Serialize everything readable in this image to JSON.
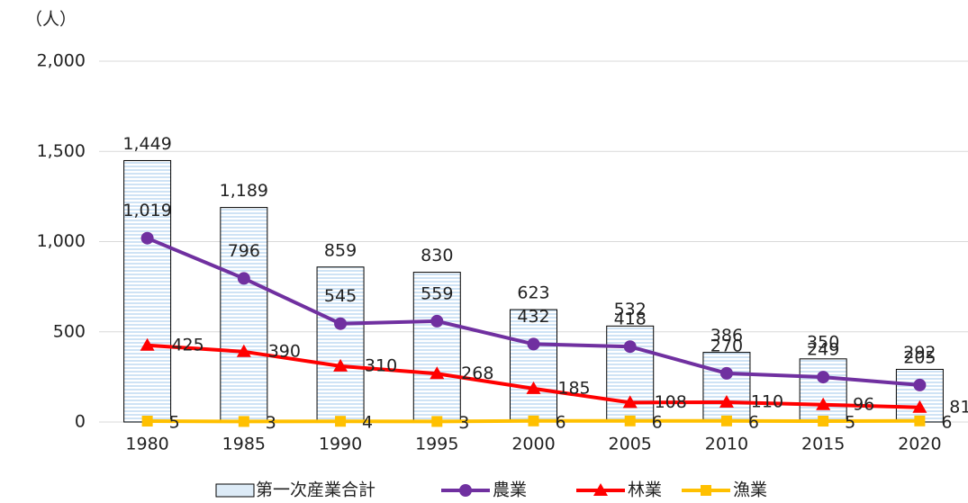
{
  "chart_data": {
    "type": "bar",
    "y_unit": "（人）",
    "categories": [
      "1980",
      "1985",
      "1990",
      "1995",
      "2000",
      "2005",
      "2010",
      "2015",
      "2020"
    ],
    "ylim": [
      0,
      2000
    ],
    "yticks": [
      0,
      500,
      {
        "value": 1000,
        "label": "1,000"
      },
      {
        "value": 1500,
        "label": "1,500"
      },
      {
        "value": 2000,
        "label": "2,000"
      }
    ],
    "grid": true,
    "series": [
      {
        "name": "第一次産業合計",
        "type": "bar",
        "color": "#ddebf7",
        "values": [
          1449,
          1189,
          859,
          830,
          623,
          532,
          386,
          350,
          292
        ],
        "value_labels": [
          "1,449",
          "1,189",
          "859",
          "830",
          "623",
          "532",
          "386",
          "350",
          "292"
        ]
      },
      {
        "name": "農業",
        "type": "line",
        "marker": "circle",
        "color": "#7030a0",
        "values": [
          1019,
          796,
          545,
          559,
          432,
          418,
          270,
          249,
          205
        ],
        "value_labels": [
          "1,019",
          "796",
          "545",
          "559",
          "432",
          "418",
          "270",
          "249",
          "205"
        ]
      },
      {
        "name": "林業",
        "type": "line",
        "marker": "triangle",
        "color": "#ff0000",
        "values": [
          425,
          390,
          310,
          268,
          185,
          108,
          110,
          96,
          81
        ]
      },
      {
        "name": "漁業",
        "type": "line",
        "marker": "square",
        "color": "#ffc000",
        "values": [
          5,
          3,
          4,
          3,
          6,
          6,
          6,
          5,
          6
        ]
      }
    ]
  }
}
